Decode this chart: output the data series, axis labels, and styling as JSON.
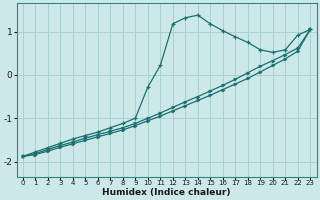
{
  "xlabel": "Humidex (Indice chaleur)",
  "ylabel": "",
  "bg_color": "#cde8e8",
  "grid_color": "#aad0d0",
  "line_color": "#1a7070",
  "spine_color": "#2a8888",
  "xlim": [
    -0.5,
    23.5
  ],
  "ylim": [
    -2.35,
    1.65
  ],
  "xticks": [
    0,
    1,
    2,
    3,
    4,
    5,
    6,
    7,
    8,
    9,
    10,
    11,
    12,
    13,
    14,
    15,
    16,
    17,
    18,
    19,
    20,
    21,
    22,
    23
  ],
  "yticks": [
    -2,
    -1,
    0,
    1
  ],
  "curve1_x": [
    0,
    1,
    2,
    3,
    4,
    5,
    6,
    7,
    8,
    9,
    10,
    11,
    12,
    13,
    14,
    15,
    16,
    17,
    18,
    19,
    20,
    21,
    22,
    23
  ],
  "curve1_y": [
    -1.88,
    -1.78,
    -1.68,
    -1.58,
    -1.48,
    -1.4,
    -1.32,
    -1.22,
    -1.12,
    -1.0,
    -0.28,
    0.22,
    1.18,
    1.32,
    1.38,
    1.18,
    1.02,
    0.88,
    0.75,
    0.58,
    0.52,
    0.58,
    0.92,
    1.05
  ],
  "curve2_x": [
    0,
    1,
    2,
    3,
    4,
    5,
    6,
    7,
    8,
    9,
    10,
    11,
    12,
    13,
    14,
    15,
    16,
    17,
    18,
    19,
    20,
    21,
    22,
    23
  ],
  "curve2_y": [
    -1.88,
    -1.82,
    -1.72,
    -1.63,
    -1.55,
    -1.46,
    -1.38,
    -1.3,
    -1.22,
    -1.12,
    -1.0,
    -0.88,
    -0.75,
    -0.62,
    -0.5,
    -0.37,
    -0.24,
    -0.1,
    0.05,
    0.2,
    0.33,
    0.47,
    0.62,
    1.05
  ],
  "curve3_x": [
    0,
    1,
    2,
    3,
    4,
    5,
    6,
    7,
    8,
    9,
    10,
    11,
    12,
    13,
    14,
    15,
    16,
    17,
    18,
    19,
    20,
    21,
    22,
    23
  ],
  "curve3_y": [
    -1.88,
    -1.84,
    -1.76,
    -1.67,
    -1.59,
    -1.51,
    -1.43,
    -1.35,
    -1.27,
    -1.17,
    -1.06,
    -0.95,
    -0.83,
    -0.71,
    -0.59,
    -0.47,
    -0.34,
    -0.21,
    -0.08,
    0.07,
    0.22,
    0.37,
    0.55,
    1.05
  ]
}
